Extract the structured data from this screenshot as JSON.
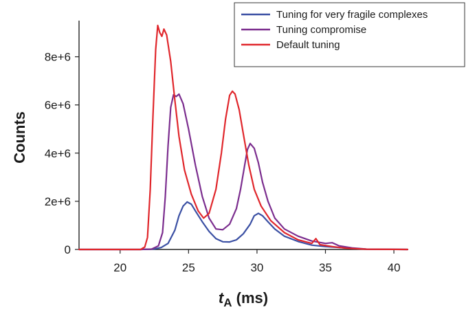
{
  "chart_data": {
    "type": "line",
    "title": "",
    "xlabel_main": "t",
    "xlabel_sub": "A",
    "xlabel_unit": " (ms)",
    "ylabel": "Counts",
    "xlim": [
      17,
      41
    ],
    "ylim": [
      0,
      9500000
    ],
    "x_ticks": [
      {
        "value": 20,
        "label": "20"
      },
      {
        "value": 25,
        "label": "25"
      },
      {
        "value": 30,
        "label": "30"
      },
      {
        "value": 35,
        "label": "35"
      },
      {
        "value": 40,
        "label": "40"
      }
    ],
    "y_ticks": [
      {
        "value": 0,
        "label": "0"
      },
      {
        "value": 2000000,
        "label": "2e+6"
      },
      {
        "value": 4000000,
        "label": "4e+6"
      },
      {
        "value": 6000000,
        "label": "6e+6"
      },
      {
        "value": 8000000,
        "label": "8e+6"
      }
    ],
    "grid": false,
    "legend_position": "top-right",
    "series": [
      {
        "name": "Tuning for very fragile complexes",
        "color": "#3a4fa3",
        "points": [
          [
            17.0,
            0
          ],
          [
            21.5,
            0
          ],
          [
            22.5,
            20000
          ],
          [
            23.0,
            80000
          ],
          [
            23.5,
            250000
          ],
          [
            24.0,
            800000
          ],
          [
            24.3,
            1400000
          ],
          [
            24.6,
            1800000
          ],
          [
            24.9,
            1970000
          ],
          [
            25.2,
            1880000
          ],
          [
            25.5,
            1600000
          ],
          [
            26.0,
            1150000
          ],
          [
            26.5,
            750000
          ],
          [
            27.0,
            450000
          ],
          [
            27.5,
            320000
          ],
          [
            28.0,
            310000
          ],
          [
            28.5,
            400000
          ],
          [
            29.0,
            650000
          ],
          [
            29.5,
            1050000
          ],
          [
            29.8,
            1400000
          ],
          [
            30.1,
            1500000
          ],
          [
            30.4,
            1400000
          ],
          [
            30.8,
            1150000
          ],
          [
            31.3,
            850000
          ],
          [
            32.0,
            550000
          ],
          [
            33.0,
            330000
          ],
          [
            34.0,
            180000
          ],
          [
            35.0,
            120000
          ],
          [
            36.0,
            80000
          ],
          [
            37.0,
            40000
          ],
          [
            38.0,
            10000
          ],
          [
            41.0,
            0
          ]
        ]
      },
      {
        "name": "Tuning compromise",
        "color": "#7b2d8e",
        "points": [
          [
            17.0,
            0
          ],
          [
            21.5,
            0
          ],
          [
            22.3,
            15000
          ],
          [
            22.8,
            150000
          ],
          [
            23.1,
            700000
          ],
          [
            23.3,
            2200000
          ],
          [
            23.5,
            4300000
          ],
          [
            23.7,
            5900000
          ],
          [
            23.9,
            6420000
          ],
          [
            24.1,
            6350000
          ],
          [
            24.3,
            6450000
          ],
          [
            24.6,
            6050000
          ],
          [
            25.0,
            5000000
          ],
          [
            25.5,
            3500000
          ],
          [
            26.0,
            2200000
          ],
          [
            26.5,
            1300000
          ],
          [
            27.0,
            850000
          ],
          [
            27.5,
            820000
          ],
          [
            28.0,
            1050000
          ],
          [
            28.5,
            1700000
          ],
          [
            28.8,
            2500000
          ],
          [
            29.1,
            3500000
          ],
          [
            29.3,
            4150000
          ],
          [
            29.5,
            4400000
          ],
          [
            29.8,
            4200000
          ],
          [
            30.1,
            3600000
          ],
          [
            30.4,
            2800000
          ],
          [
            30.8,
            2000000
          ],
          [
            31.3,
            1300000
          ],
          [
            32.0,
            850000
          ],
          [
            33.0,
            550000
          ],
          [
            34.0,
            350000
          ],
          [
            35.0,
            250000
          ],
          [
            35.5,
            280000
          ],
          [
            36.0,
            150000
          ],
          [
            37.0,
            60000
          ],
          [
            38.0,
            15000
          ],
          [
            41.0,
            0
          ]
        ]
      },
      {
        "name": "Default tuning",
        "color": "#e0262b",
        "points": [
          [
            17.0,
            0
          ],
          [
            21.5,
            0
          ],
          [
            21.8,
            100000
          ],
          [
            22.0,
            500000
          ],
          [
            22.2,
            2500000
          ],
          [
            22.4,
            5500000
          ],
          [
            22.6,
            8300000
          ],
          [
            22.75,
            9300000
          ],
          [
            22.9,
            9000000
          ],
          [
            23.05,
            8850000
          ],
          [
            23.2,
            9150000
          ],
          [
            23.4,
            8900000
          ],
          [
            23.7,
            7800000
          ],
          [
            24.0,
            6200000
          ],
          [
            24.3,
            4700000
          ],
          [
            24.7,
            3300000
          ],
          [
            25.2,
            2300000
          ],
          [
            25.7,
            1600000
          ],
          [
            26.1,
            1300000
          ],
          [
            26.5,
            1500000
          ],
          [
            27.0,
            2500000
          ],
          [
            27.4,
            4000000
          ],
          [
            27.7,
            5400000
          ],
          [
            28.0,
            6400000
          ],
          [
            28.2,
            6570000
          ],
          [
            28.4,
            6450000
          ],
          [
            28.7,
            5800000
          ],
          [
            29.0,
            4800000
          ],
          [
            29.4,
            3500000
          ],
          [
            29.8,
            2500000
          ],
          [
            30.3,
            1800000
          ],
          [
            31.0,
            1200000
          ],
          [
            32.0,
            700000
          ],
          [
            33.0,
            400000
          ],
          [
            34.0,
            250000
          ],
          [
            34.3,
            450000
          ],
          [
            34.6,
            200000
          ],
          [
            35.5,
            120000
          ],
          [
            36.5,
            50000
          ],
          [
            38.0,
            10000
          ],
          [
            41.0,
            0
          ]
        ]
      }
    ]
  }
}
